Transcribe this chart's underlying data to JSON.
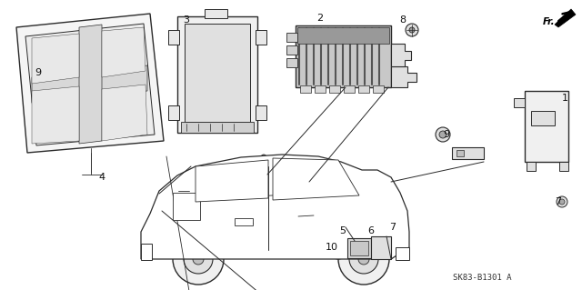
{
  "bg_color": "#ffffff",
  "line_color": "#2a2a2a",
  "diagram_code": "SK83-B1301 A",
  "fig_width": 6.4,
  "fig_height": 3.19,
  "dpi": 100,
  "labels": [
    [
      "9",
      42,
      80
    ],
    [
      "4",
      112,
      195
    ],
    [
      "3",
      205,
      22
    ],
    [
      "2",
      352,
      20
    ],
    [
      "8",
      443,
      22
    ],
    [
      "1",
      621,
      108
    ],
    [
      "9",
      491,
      148
    ],
    [
      "5",
      377,
      254
    ],
    [
      "6",
      408,
      254
    ],
    [
      "7",
      432,
      250
    ],
    [
      "7",
      614,
      222
    ],
    [
      "10",
      365,
      272
    ]
  ]
}
